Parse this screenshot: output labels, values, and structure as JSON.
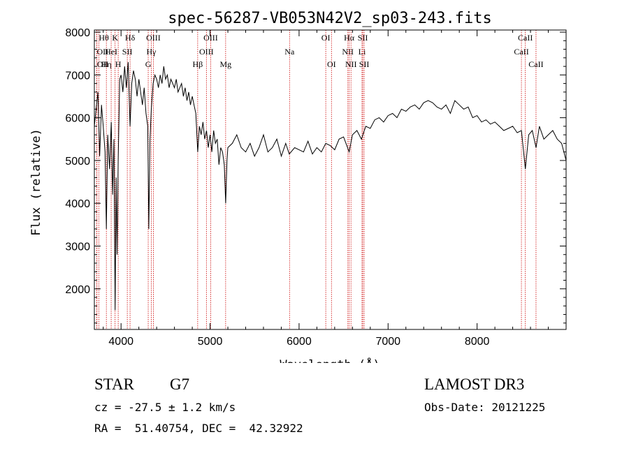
{
  "chart_data": {
    "type": "line",
    "title": "spec-56287-VB053N42V2_sp03-243.fits",
    "xlabel": "Wavelength (Å)",
    "ylabel": "Flux (relative)",
    "xlim": [
      3700,
      9000
    ],
    "ylim": [
      1050,
      8050
    ],
    "xticks": [
      4000,
      5000,
      6000,
      7000,
      8000
    ],
    "yticks": [
      2000,
      3000,
      4000,
      5000,
      6000,
      7000,
      8000
    ],
    "grid": false,
    "series": [
      {
        "name": "spectrum",
        "x": [
          3700,
          3720,
          3740,
          3760,
          3780,
          3800,
          3820,
          3835,
          3850,
          3870,
          3890,
          3905,
          3920,
          3933,
          3945,
          3955,
          3968,
          3985,
          4000,
          4020,
          4040,
          4060,
          4080,
          4101,
          4120,
          4140,
          4160,
          4180,
          4200,
          4220,
          4240,
          4260,
          4280,
          4300,
          4312,
          4325,
          4340,
          4360,
          4380,
          4400,
          4420,
          4440,
          4460,
          4480,
          4500,
          4520,
          4540,
          4560,
          4580,
          4600,
          4620,
          4640,
          4660,
          4680,
          4700,
          4720,
          4740,
          4760,
          4780,
          4800,
          4820,
          4840,
          4861,
          4880,
          4900,
          4920,
          4940,
          4960,
          4980,
          5000,
          5020,
          5040,
          5060,
          5080,
          5100,
          5120,
          5140,
          5160,
          5175,
          5190,
          5200,
          5250,
          5300,
          5350,
          5400,
          5450,
          5500,
          5550,
          5600,
          5650,
          5700,
          5750,
          5800,
          5850,
          5890,
          5950,
          6000,
          6050,
          6100,
          6150,
          6200,
          6250,
          6300,
          6350,
          6400,
          6450,
          6500,
          6563,
          6600,
          6650,
          6700,
          6750,
          6800,
          6850,
          6900,
          6950,
          7000,
          7050,
          7100,
          7150,
          7200,
          7250,
          7300,
          7350,
          7400,
          7450,
          7500,
          7550,
          7600,
          7650,
          7700,
          7750,
          7800,
          7850,
          7900,
          7950,
          8000,
          8050,
          8100,
          8150,
          8200,
          8250,
          8300,
          8350,
          8400,
          8450,
          8498,
          8542,
          8580,
          8620,
          8662,
          8700,
          8750,
          8800,
          8850,
          8900,
          8950,
          9000
        ],
        "y": [
          5800,
          6200,
          6600,
          5100,
          6300,
          5800,
          5200,
          3400,
          5600,
          4800,
          5900,
          4200,
          5500,
          1500,
          4600,
          2800,
          5000,
          6900,
          7000,
          6600,
          7200,
          6700,
          7300,
          5800,
          6800,
          7100,
          6900,
          6500,
          6900,
          6600,
          6300,
          6700,
          6100,
          5800,
          3400,
          5500,
          6200,
          6800,
          7000,
          6900,
          6700,
          7000,
          6800,
          7200,
          6900,
          7000,
          6700,
          6900,
          6800,
          6700,
          6900,
          6600,
          6700,
          6800,
          6500,
          6700,
          6400,
          6600,
          6300,
          6500,
          6300,
          6100,
          5200,
          5800,
          5600,
          5900,
          5500,
          5700,
          5300,
          5600,
          5200,
          5700,
          5400,
          5500,
          4900,
          5300,
          5200,
          4900,
          4000,
          5000,
          5300,
          5400,
          5600,
          5300,
          5200,
          5400,
          5100,
          5300,
          5600,
          5200,
          5300,
          5500,
          5100,
          5400,
          5150,
          5300,
          5250,
          5200,
          5450,
          5150,
          5300,
          5200,
          5400,
          5350,
          5250,
          5500,
          5550,
          5200,
          5600,
          5700,
          5500,
          5800,
          5750,
          5950,
          6000,
          5900,
          6050,
          6100,
          6000,
          6200,
          6150,
          6250,
          6300,
          6200,
          6350,
          6400,
          6350,
          6250,
          6200,
          6300,
          6100,
          6400,
          6300,
          6200,
          6250,
          6000,
          6050,
          5900,
          5950,
          5850,
          5900,
          5800,
          5700,
          5750,
          5800,
          5650,
          5700,
          4800,
          5600,
          5700,
          5300,
          5800,
          5500,
          5600,
          5700,
          5500,
          5400,
          5000
        ]
      }
    ],
    "lines": [
      {
        "label": "OII",
        "x": 3727,
        "row": 1,
        "align": "start"
      },
      {
        "label": "Hθ",
        "x": 3750,
        "row": 0,
        "align": "start"
      },
      {
        "label": "OII",
        "x": 3729,
        "row": 2,
        "align": "start"
      },
      {
        "label": "Hη",
        "x": 3835,
        "row": 2,
        "align": "middle"
      },
      {
        "label": "HeI",
        "x": 3889,
        "row": 1,
        "align": "middle"
      },
      {
        "label": "K",
        "x": 3933,
        "row": 0,
        "align": "middle"
      },
      {
        "label": "H",
        "x": 3968,
        "row": 2,
        "align": "middle"
      },
      {
        "label": "SII",
        "x": 4070,
        "row": 1,
        "align": "middle"
      },
      {
        "label": "Hδ",
        "x": 4101,
        "row": 0,
        "align": "middle"
      },
      {
        "label": "G",
        "x": 4305,
        "row": 2,
        "align": "middle"
      },
      {
        "label": "Hγ",
        "x": 4340,
        "row": 1,
        "align": "middle"
      },
      {
        "label": "OIII",
        "x": 4363,
        "row": 0,
        "align": "middle"
      },
      {
        "label": "Hβ",
        "x": 4861,
        "row": 2,
        "align": "middle"
      },
      {
        "label": "OIII",
        "x": 4959,
        "row": 1,
        "align": "middle"
      },
      {
        "label": "OIII",
        "x": 5007,
        "row": 0,
        "align": "middle"
      },
      {
        "label": "Mg",
        "x": 5175,
        "row": 2,
        "align": "middle"
      },
      {
        "label": "Na",
        "x": 5893,
        "row": 1,
        "align": "middle"
      },
      {
        "label": "OI",
        "x": 6300,
        "row": 0,
        "align": "middle"
      },
      {
        "label": "OI",
        "x": 6364,
        "row": 2,
        "align": "middle"
      },
      {
        "label": "NII",
        "x": 6548,
        "row": 1,
        "align": "middle"
      },
      {
        "label": "Hα",
        "x": 6563,
        "row": 0,
        "align": "middle"
      },
      {
        "label": "NII",
        "x": 6583,
        "row": 2,
        "align": "middle"
      },
      {
        "label": "Li",
        "x": 6707,
        "row": 1,
        "align": "middle"
      },
      {
        "label": "SII",
        "x": 6716,
        "row": 0,
        "align": "middle"
      },
      {
        "label": "SII",
        "x": 6731,
        "row": 2,
        "align": "middle"
      },
      {
        "label": "CaII",
        "x": 8498,
        "row": 1,
        "align": "middle"
      },
      {
        "label": "CaII",
        "x": 8542,
        "row": 0,
        "align": "middle"
      },
      {
        "label": "CaII",
        "x": 8662,
        "row": 2,
        "align": "middle"
      }
    ]
  },
  "info": {
    "class_label": "STAR",
    "subclass_label": "G7",
    "survey": "LAMOST DR3",
    "cz": "cz = -27.5 ± 1.2 km/s",
    "obs_date": "Obs-Date: 20121225",
    "coords": "RA =  51.40754, DEC =  42.32922"
  },
  "colors": {
    "line_marker": "#cc0000",
    "spectrum": "#000000",
    "axes": "#000000"
  }
}
